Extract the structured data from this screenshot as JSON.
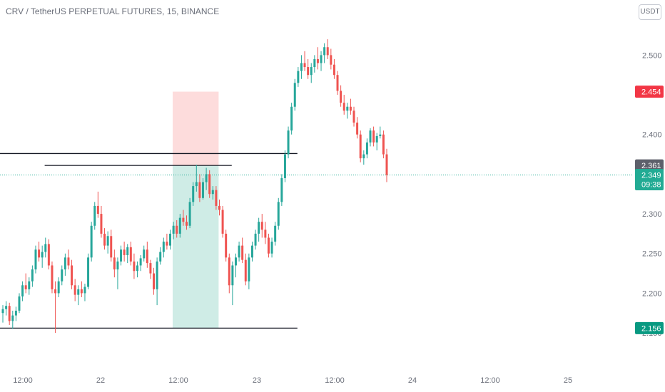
{
  "header": {
    "title": "CRV / TetherUS PERPETUAL FUTURES, 15, BINANCE",
    "currency": "USDT"
  },
  "chart_data": {
    "type": "candlestick",
    "y_ticks": [
      "2.500",
      "2.450",
      "2.400",
      "2.350",
      "2.300",
      "2.250",
      "2.200",
      "2.150"
    ],
    "x_ticks": [
      "12:00",
      "22",
      "12:00",
      "23",
      "12:00",
      "24",
      "12:00",
      "25"
    ],
    "ylim": [
      2.145,
      2.53
    ],
    "grid": false,
    "price_badges": [
      {
        "label": "2.454",
        "value": 2.454,
        "color": "#f23645"
      },
      {
        "label": "2.361",
        "value": 2.361,
        "color": "#5d606b"
      },
      {
        "label": "2.349",
        "value": 2.349,
        "color": "#22ab94",
        "countdown": "09:38"
      },
      {
        "label": "2.156",
        "value": 2.156,
        "color": "#089981"
      }
    ],
    "horizontal_lines": [
      {
        "value": 2.376,
        "x_from": "21 00:00",
        "x_to": "25 12:00"
      },
      {
        "value": 2.361,
        "x_from": "22 07:00",
        "x_to": "24 16:00"
      },
      {
        "value": 2.156,
        "x_from": "21 00:00",
        "x_to": "25 12:00"
      }
    ],
    "last_price": 2.349,
    "position": {
      "type": "long-short-tool",
      "entry": 2.361,
      "stop": 2.454,
      "target": 2.156,
      "x_from": "23 22:00",
      "x_to": "24 12:00",
      "stop_color": "#fddcdc",
      "target_color": "#cfece6"
    },
    "candle_colors": {
      "up": "#26a69a",
      "down": "#ef5350"
    },
    "candles": [
      [
        2.175,
        2.185,
        2.163,
        2.18
      ],
      [
        2.18,
        2.19,
        2.172,
        2.184
      ],
      [
        2.184,
        2.188,
        2.16,
        2.165
      ],
      [
        2.165,
        2.178,
        2.155,
        2.172
      ],
      [
        2.172,
        2.183,
        2.165,
        2.178
      ],
      [
        2.178,
        2.2,
        2.175,
        2.196
      ],
      [
        2.196,
        2.215,
        2.19,
        2.21
      ],
      [
        2.21,
        2.225,
        2.2,
        2.205
      ],
      [
        2.205,
        2.22,
        2.198,
        2.215
      ],
      [
        2.215,
        2.235,
        2.208,
        2.23
      ],
      [
        2.23,
        2.26,
        2.225,
        2.255
      ],
      [
        2.255,
        2.265,
        2.24,
        2.245
      ],
      [
        2.245,
        2.26,
        2.232,
        2.252
      ],
      [
        2.252,
        2.27,
        2.245,
        2.262
      ],
      [
        2.262,
        2.268,
        2.23,
        2.235
      ],
      [
        2.235,
        2.24,
        2.2,
        2.205
      ],
      [
        2.205,
        2.215,
        2.15,
        2.2
      ],
      [
        2.2,
        2.22,
        2.195,
        2.215
      ],
      [
        2.215,
        2.235,
        2.21,
        2.23
      ],
      [
        2.23,
        2.25,
        2.222,
        2.245
      ],
      [
        2.245,
        2.255,
        2.23,
        2.235
      ],
      [
        2.235,
        2.242,
        2.205,
        2.21
      ],
      [
        2.21,
        2.218,
        2.19,
        2.198
      ],
      [
        2.198,
        2.21,
        2.185,
        2.205
      ],
      [
        2.205,
        2.215,
        2.195,
        2.2
      ],
      [
        2.2,
        2.212,
        2.19,
        2.208
      ],
      [
        2.208,
        2.25,
        2.205,
        2.245
      ],
      [
        2.245,
        2.29,
        2.24,
        2.285
      ],
      [
        2.285,
        2.315,
        2.28,
        2.31
      ],
      [
        2.31,
        2.328,
        2.295,
        2.3
      ],
      [
        2.3,
        2.31,
        2.27,
        2.275
      ],
      [
        2.275,
        2.282,
        2.255,
        2.26
      ],
      [
        2.26,
        2.278,
        2.25,
        2.272
      ],
      [
        2.272,
        2.28,
        2.24,
        2.245
      ],
      [
        2.245,
        2.255,
        2.22,
        2.23
      ],
      [
        2.23,
        2.245,
        2.205,
        2.24
      ],
      [
        2.24,
        2.26,
        2.235,
        2.255
      ],
      [
        2.255,
        2.265,
        2.24,
        2.248
      ],
      [
        2.248,
        2.262,
        2.238,
        2.258
      ],
      [
        2.258,
        2.265,
        2.235,
        2.24
      ],
      [
        2.24,
        2.25,
        2.218,
        2.228
      ],
      [
        2.228,
        2.24,
        2.22,
        2.235
      ],
      [
        2.235,
        2.248,
        2.228,
        2.244
      ],
      [
        2.244,
        2.26,
        2.24,
        2.255
      ],
      [
        2.255,
        2.265,
        2.232,
        2.238
      ],
      [
        2.238,
        2.242,
        2.218,
        2.225
      ],
      [
        2.225,
        2.232,
        2.198,
        2.205
      ],
      [
        2.205,
        2.245,
        2.185,
        2.24
      ],
      [
        2.24,
        2.258,
        2.236,
        2.252
      ],
      [
        2.252,
        2.27,
        2.245,
        2.265
      ],
      [
        2.265,
        2.275,
        2.255,
        2.26
      ],
      [
        2.26,
        2.28,
        2.255,
        2.275
      ],
      [
        2.275,
        2.29,
        2.268,
        2.285
      ],
      [
        2.285,
        2.292,
        2.27,
        2.275
      ],
      [
        2.275,
        2.3,
        2.27,
        2.295
      ],
      [
        2.295,
        2.305,
        2.285,
        2.29
      ],
      [
        2.29,
        2.298,
        2.28,
        2.285
      ],
      [
        2.285,
        2.32,
        2.282,
        2.315
      ],
      [
        2.315,
        2.34,
        2.31,
        2.335
      ],
      [
        2.335,
        2.362,
        2.328,
        2.34
      ],
      [
        2.34,
        2.35,
        2.315,
        2.32
      ],
      [
        2.32,
        2.345,
        2.318,
        2.34
      ],
      [
        2.34,
        2.358,
        2.33,
        2.35
      ],
      [
        2.35,
        2.355,
        2.32,
        2.325
      ],
      [
        2.325,
        2.335,
        2.318,
        2.33
      ],
      [
        2.33,
        2.335,
        2.305,
        2.31
      ],
      [
        2.31,
        2.318,
        2.298,
        2.305
      ],
      [
        2.305,
        2.31,
        2.27,
        2.275
      ],
      [
        2.275,
        2.28,
        2.24,
        2.245
      ],
      [
        2.245,
        2.25,
        2.2,
        2.21
      ],
      [
        2.21,
        2.24,
        2.185,
        2.235
      ],
      [
        2.235,
        2.25,
        2.22,
        2.245
      ],
      [
        2.245,
        2.265,
        2.24,
        2.26
      ],
      [
        2.26,
        2.27,
        2.238,
        2.242
      ],
      [
        2.242,
        2.25,
        2.21,
        2.215
      ],
      [
        2.215,
        2.25,
        2.205,
        2.245
      ],
      [
        2.245,
        2.265,
        2.24,
        2.26
      ],
      [
        2.26,
        2.28,
        2.255,
        2.275
      ],
      [
        2.275,
        2.295,
        2.265,
        2.29
      ],
      [
        2.29,
        2.3,
        2.27,
        2.28
      ],
      [
        2.28,
        2.29,
        2.262,
        2.27
      ],
      [
        2.27,
        2.275,
        2.245,
        2.25
      ],
      [
        2.25,
        2.27,
        2.245,
        2.265
      ],
      [
        2.265,
        2.29,
        2.26,
        2.285
      ],
      [
        2.285,
        2.32,
        2.28,
        2.315
      ],
      [
        2.315,
        2.35,
        2.31,
        2.345
      ],
      [
        2.345,
        2.38,
        2.34,
        2.375
      ],
      [
        2.375,
        2.41,
        2.37,
        2.405
      ],
      [
        2.405,
        2.44,
        2.4,
        2.435
      ],
      [
        2.435,
        2.47,
        2.43,
        2.465
      ],
      [
        2.465,
        2.485,
        2.46,
        2.48
      ],
      [
        2.48,
        2.5,
        2.47,
        2.49
      ],
      [
        2.49,
        2.505,
        2.48,
        2.485
      ],
      [
        2.485,
        2.495,
        2.47,
        2.475
      ],
      [
        2.475,
        2.49,
        2.465,
        2.485
      ],
      [
        2.485,
        2.5,
        2.478,
        2.495
      ],
      [
        2.495,
        2.51,
        2.482,
        2.49
      ],
      [
        2.49,
        2.505,
        2.48,
        2.5
      ],
      [
        2.5,
        2.515,
        2.49,
        2.51
      ],
      [
        2.51,
        2.52,
        2.495,
        2.5
      ],
      [
        2.5,
        2.508,
        2.482,
        2.488
      ],
      [
        2.488,
        2.495,
        2.47,
        2.475
      ],
      [
        2.475,
        2.48,
        2.45,
        2.455
      ],
      [
        2.455,
        2.462,
        2.435,
        2.44
      ],
      [
        2.44,
        2.45,
        2.425,
        2.43
      ],
      [
        2.43,
        2.44,
        2.42,
        2.435
      ],
      [
        2.435,
        2.445,
        2.425,
        2.43
      ],
      [
        2.43,
        2.435,
        2.41,
        2.415
      ],
      [
        2.415,
        2.422,
        2.395,
        2.4
      ],
      [
        2.4,
        2.405,
        2.365,
        2.37
      ],
      [
        2.37,
        2.38,
        2.362,
        2.375
      ],
      [
        2.375,
        2.395,
        2.37,
        2.39
      ],
      [
        2.39,
        2.408,
        2.385,
        2.405
      ],
      [
        2.405,
        2.41,
        2.385,
        2.39
      ],
      [
        2.39,
        2.402,
        2.38,
        2.398
      ],
      [
        2.398,
        2.41,
        2.395,
        2.4
      ],
      [
        2.4,
        2.405,
        2.37,
        2.375
      ],
      [
        2.375,
        2.382,
        2.34,
        2.349
      ]
    ]
  }
}
